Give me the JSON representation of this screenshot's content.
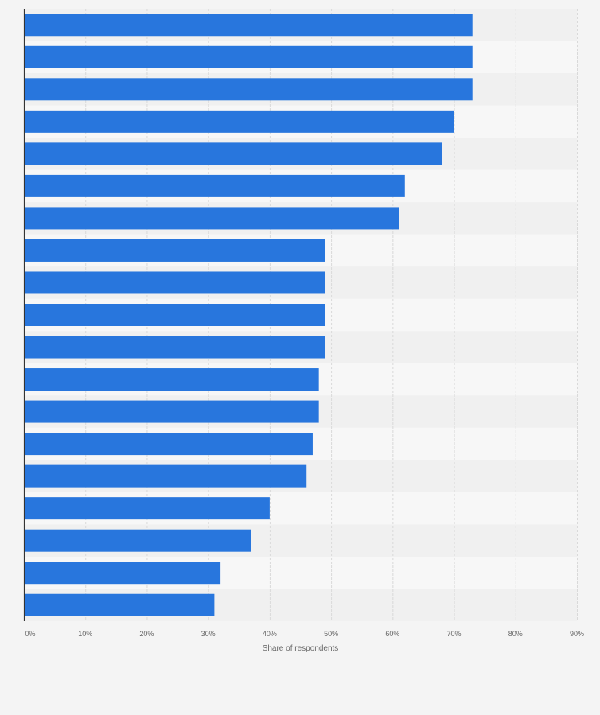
{
  "chart_data": {
    "type": "bar",
    "orientation": "horizontal",
    "title": "",
    "xlabel": "Share of respondents",
    "ylabel": "",
    "xlim": [
      0,
      90
    ],
    "x_ticks": [
      0,
      10,
      20,
      30,
      40,
      50,
      60,
      70,
      80,
      90
    ],
    "x_tick_labels": [
      "0%",
      "10%",
      "20%",
      "30%",
      "40%",
      "50%",
      "60%",
      "70%",
      "80%",
      "90%"
    ],
    "categories": [
      "",
      "",
      "",
      "",
      "",
      "",
      "",
      "",
      "",
      "",
      "",
      "",
      "",
      "",
      "",
      "",
      "",
      "",
      ""
    ],
    "values": [
      73,
      73,
      73,
      70,
      68,
      62,
      61,
      49,
      49,
      49,
      49,
      48,
      48,
      47,
      46,
      40,
      37,
      32,
      31
    ],
    "value_unit": "%",
    "grid": true,
    "legend": "none"
  },
  "colors": {
    "background": "#f4f4f4",
    "band_light": "#f7f7f7",
    "band_dark": "#f0f0f0",
    "bar": "#2876dd",
    "grid": "#d9d9d9",
    "axis": "#333333",
    "text": "#666666"
  }
}
